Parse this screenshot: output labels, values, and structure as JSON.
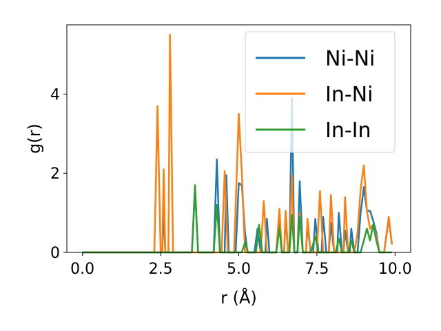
{
  "chart_data": {
    "type": "line",
    "xlabel": "r (Å)",
    "ylabel": "g(r)",
    "xlim": [
      -0.5,
      10.5
    ],
    "ylim": [
      0,
      5.75
    ],
    "xticks": [
      0.0,
      2.5,
      5.0,
      7.5,
      10.0
    ],
    "xtick_labels": [
      "0.0",
      "2.5",
      "5.0",
      "7.5",
      "10.0"
    ],
    "yticks": [
      0,
      2,
      4
    ],
    "ytick_labels": [
      "0",
      "2",
      "4"
    ],
    "grid": false,
    "legend_position": "top-right",
    "series": [
      {
        "name": "Ni-Ni",
        "color": "#1f77b4",
        "points": [
          [
            0.0,
            0
          ],
          [
            2.4,
            0
          ],
          [
            2.55,
            0
          ],
          [
            2.6,
            1.05
          ],
          [
            2.65,
            0
          ],
          [
            3.5,
            0
          ],
          [
            3.6,
            1.6
          ],
          [
            3.7,
            0
          ],
          [
            4.2,
            0
          ],
          [
            4.3,
            2.35
          ],
          [
            4.4,
            0
          ],
          [
            4.55,
            0
          ],
          [
            4.6,
            1.95
          ],
          [
            4.68,
            0
          ],
          [
            4.9,
            0
          ],
          [
            5.0,
            1.75
          ],
          [
            5.1,
            1.7
          ],
          [
            5.2,
            0.5
          ],
          [
            5.28,
            0
          ],
          [
            5.5,
            0
          ],
          [
            5.6,
            0.6
          ],
          [
            5.7,
            0
          ],
          [
            5.85,
            0
          ],
          [
            5.9,
            0.85
          ],
          [
            5.98,
            0
          ],
          [
            6.2,
            0
          ],
          [
            6.3,
            0.8
          ],
          [
            6.38,
            0
          ],
          [
            6.45,
            0
          ],
          [
            6.5,
            0.9
          ],
          [
            6.58,
            0
          ],
          [
            6.62,
            0
          ],
          [
            6.7,
            3.9
          ],
          [
            6.78,
            0
          ],
          [
            6.88,
            0
          ],
          [
            6.95,
            1.8
          ],
          [
            7.05,
            0
          ],
          [
            7.15,
            0
          ],
          [
            7.2,
            0.7
          ],
          [
            7.3,
            0
          ],
          [
            7.38,
            0
          ],
          [
            7.45,
            0.85
          ],
          [
            7.55,
            0
          ],
          [
            7.65,
            0
          ],
          [
            7.7,
            0.9
          ],
          [
            7.8,
            0
          ],
          [
            7.88,
            0
          ],
          [
            7.95,
            0.75
          ],
          [
            8.05,
            0
          ],
          [
            8.15,
            0
          ],
          [
            8.2,
            1.0
          ],
          [
            8.3,
            0
          ],
          [
            8.35,
            0
          ],
          [
            8.4,
            0.55
          ],
          [
            8.5,
            0
          ],
          [
            8.55,
            0
          ],
          [
            8.6,
            0.6
          ],
          [
            8.7,
            0
          ],
          [
            8.8,
            0
          ],
          [
            8.9,
            1.0
          ],
          [
            9.0,
            1.65
          ],
          [
            9.1,
            1.05
          ],
          [
            9.2,
            1.05
          ],
          [
            9.3,
            0.8
          ],
          [
            9.4,
            0.5
          ],
          [
            9.5,
            0
          ],
          [
            9.65,
            0
          ],
          [
            9.8,
            0.85
          ],
          [
            9.9,
            0.2
          ]
        ]
      },
      {
        "name": "In-Ni",
        "color": "#ff7f0e",
        "points": [
          [
            0.0,
            0
          ],
          [
            2.3,
            0
          ],
          [
            2.4,
            3.7
          ],
          [
            2.5,
            0
          ],
          [
            2.55,
            0
          ],
          [
            2.6,
            2.1
          ],
          [
            2.65,
            0
          ],
          [
            2.75,
            0
          ],
          [
            2.8,
            5.5
          ],
          [
            2.9,
            0
          ],
          [
            4.45,
            0
          ],
          [
            4.55,
            2.05
          ],
          [
            4.65,
            0
          ],
          [
            4.85,
            0
          ],
          [
            5.0,
            3.5
          ],
          [
            5.1,
            2.0
          ],
          [
            5.2,
            0
          ],
          [
            5.7,
            0
          ],
          [
            5.8,
            1.3
          ],
          [
            5.9,
            0
          ],
          [
            6.2,
            0
          ],
          [
            6.3,
            1.1
          ],
          [
            6.38,
            0
          ],
          [
            6.45,
            0
          ],
          [
            6.5,
            1.05
          ],
          [
            6.58,
            0
          ],
          [
            6.62,
            0
          ],
          [
            6.7,
            1.95
          ],
          [
            6.78,
            0
          ],
          [
            6.88,
            0
          ],
          [
            6.95,
            1.0
          ],
          [
            7.05,
            0
          ],
          [
            7.15,
            0
          ],
          [
            7.2,
            0.85
          ],
          [
            7.3,
            0
          ],
          [
            7.5,
            0
          ],
          [
            7.6,
            1.55
          ],
          [
            7.7,
            0
          ],
          [
            7.88,
            0
          ],
          [
            7.95,
            1.45
          ],
          [
            8.05,
            0
          ],
          [
            8.35,
            0
          ],
          [
            8.4,
            1.4
          ],
          [
            8.5,
            0
          ],
          [
            8.7,
            0
          ],
          [
            8.8,
            0.5
          ],
          [
            8.9,
            1.6
          ],
          [
            9.0,
            2.2
          ],
          [
            9.1,
            1.05
          ],
          [
            9.2,
            0.6
          ],
          [
            9.3,
            0.7
          ],
          [
            9.4,
            0.4
          ],
          [
            9.5,
            0
          ],
          [
            9.65,
            0
          ],
          [
            9.8,
            0.9
          ],
          [
            9.9,
            0.2
          ]
        ]
      },
      {
        "name": "In-In",
        "color": "#2ca02c",
        "points": [
          [
            0.0,
            0
          ],
          [
            3.5,
            0
          ],
          [
            3.6,
            1.7
          ],
          [
            3.7,
            0
          ],
          [
            4.2,
            0
          ],
          [
            4.3,
            1.2
          ],
          [
            4.4,
            0
          ],
          [
            5.1,
            0
          ],
          [
            5.2,
            0.25
          ],
          [
            5.3,
            0
          ],
          [
            5.55,
            0
          ],
          [
            5.65,
            0.7
          ],
          [
            5.75,
            0
          ],
          [
            6.2,
            0
          ],
          [
            6.3,
            0.6
          ],
          [
            6.38,
            0
          ],
          [
            6.62,
            0
          ],
          [
            6.7,
            0.95
          ],
          [
            6.78,
            0
          ],
          [
            6.88,
            0
          ],
          [
            6.95,
            0.9
          ],
          [
            7.05,
            0
          ],
          [
            7.3,
            0
          ],
          [
            7.45,
            0.4
          ],
          [
            7.55,
            0
          ],
          [
            8.1,
            0
          ],
          [
            8.2,
            0.35
          ],
          [
            8.3,
            0
          ],
          [
            8.5,
            0
          ],
          [
            8.6,
            0.3
          ],
          [
            8.7,
            0
          ],
          [
            8.9,
            0
          ],
          [
            9.0,
            0.3
          ],
          [
            9.1,
            0.6
          ],
          [
            9.2,
            0.3
          ],
          [
            9.3,
            0.7
          ],
          [
            9.4,
            0.3
          ],
          [
            9.5,
            0
          ],
          [
            9.9,
            0
          ]
        ]
      }
    ]
  }
}
